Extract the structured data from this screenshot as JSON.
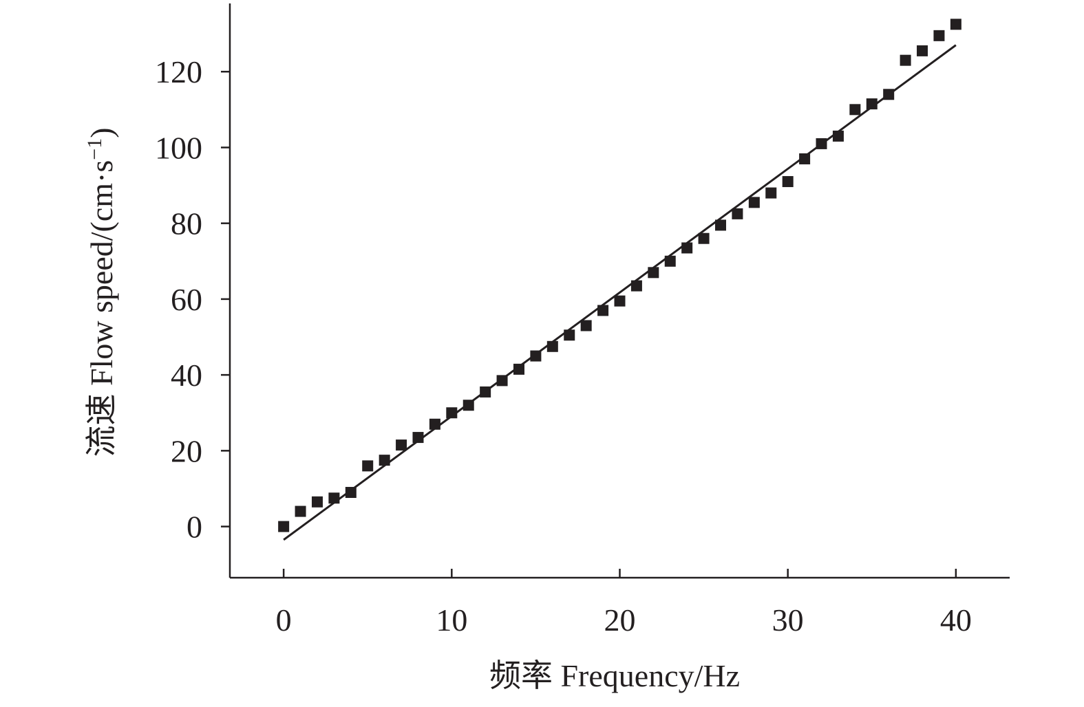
{
  "chart_data": {
    "type": "scatter",
    "xlabel": "频率 Frequency/Hz",
    "ylabel": {
      "main": "流速 Flow speed/(cm·s",
      "superscript": "−1",
      "close": ")"
    },
    "xlim": [
      -3.2,
      43.2
    ],
    "ylim": [
      -13.5,
      138
    ],
    "xticks": [
      0,
      10,
      20,
      30,
      40
    ],
    "yticks": [
      0,
      20,
      40,
      60,
      80,
      100,
      120
    ],
    "grid": false,
    "legend": "none",
    "colors": {
      "ink": "#231f20"
    },
    "series": [
      {
        "marker": "square",
        "x": [
          0,
          1,
          2,
          3,
          4,
          5,
          6,
          7,
          8,
          9,
          10,
          11,
          12,
          13,
          14,
          15,
          16,
          17,
          18,
          19,
          20,
          21,
          22,
          23,
          24,
          25,
          26,
          27,
          28,
          29,
          30,
          31,
          32,
          33,
          34,
          35,
          36,
          37,
          38,
          39,
          40
        ],
        "y": [
          0,
          4,
          6.5,
          7.5,
          9,
          16,
          17.5,
          21.5,
          23.5,
          27,
          30,
          32,
          35.5,
          38.5,
          41.5,
          45,
          47.5,
          50.5,
          53,
          57,
          59.5,
          63.5,
          67,
          70,
          73.5,
          76,
          79.5,
          82.5,
          85.5,
          88,
          91,
          97,
          101,
          103,
          110,
          111.5,
          114,
          123,
          125.5,
          129.5,
          132.5
        ]
      }
    ],
    "fit_line": {
      "x": [
        0,
        40
      ],
      "y": [
        -3.5,
        127
      ]
    }
  }
}
